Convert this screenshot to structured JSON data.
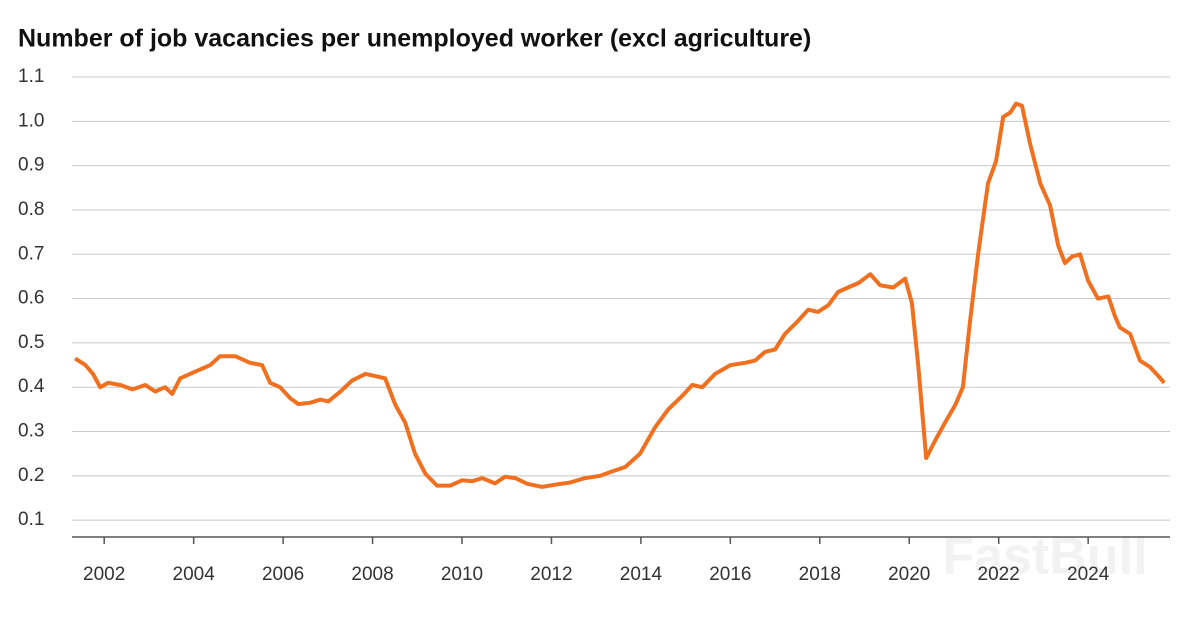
{
  "chart_data": {
    "type": "line",
    "title": "Number of job vacancies per unemployed worker (excl agriculture)",
    "watermark": "FastBull",
    "x": [
      2001.35,
      2001.58,
      2001.75,
      2001.91,
      2002.09,
      2002.36,
      2002.63,
      2002.92,
      2003.14,
      2003.36,
      2003.52,
      2003.7,
      2004.03,
      2004.37,
      2004.59,
      2004.93,
      2005.26,
      2005.53,
      2005.71,
      2005.93,
      2006.16,
      2006.34,
      2006.61,
      2006.83,
      2007.01,
      2007.28,
      2007.54,
      2007.84,
      2008.06,
      2008.28,
      2008.51,
      2008.73,
      2008.95,
      2009.18,
      2009.44,
      2009.74,
      2010.0,
      2010.23,
      2010.45,
      2010.74,
      2010.96,
      2011.19,
      2011.46,
      2011.79,
      2012.08,
      2012.42,
      2012.75,
      2013.09,
      2013.36,
      2013.65,
      2013.98,
      2014.32,
      2014.61,
      2014.92,
      2015.15,
      2015.37,
      2015.66,
      2016.0,
      2016.33,
      2016.55,
      2016.78,
      2017.0,
      2017.22,
      2017.52,
      2017.74,
      2017.96,
      2018.19,
      2018.41,
      2018.63,
      2018.86,
      2019.13,
      2019.35,
      2019.64,
      2019.91,
      2020.06,
      2020.2,
      2020.38,
      2020.58,
      2020.8,
      2021.03,
      2021.2,
      2021.36,
      2021.54,
      2021.76,
      2021.94,
      2022.1,
      2022.26,
      2022.39,
      2022.52,
      2022.7,
      2022.93,
      2023.15,
      2023.33,
      2023.48,
      2023.64,
      2023.82,
      2024.0,
      2024.22,
      2024.45,
      2024.6,
      2024.71,
      2024.94,
      2025.16,
      2025.39,
      2025.57,
      2025.7
    ],
    "series": [
      {
        "name": "Vacancies per unemployed worker",
        "color": "#f07020",
        "values": [
          0.465,
          0.45,
          0.43,
          0.4,
          0.41,
          0.405,
          0.395,
          0.405,
          0.39,
          0.4,
          0.385,
          0.42,
          0.435,
          0.45,
          0.47,
          0.47,
          0.455,
          0.45,
          0.41,
          0.4,
          0.375,
          0.362,
          0.365,
          0.372,
          0.368,
          0.39,
          0.415,
          0.43,
          0.425,
          0.42,
          0.36,
          0.32,
          0.25,
          0.205,
          0.178,
          0.178,
          0.19,
          0.188,
          0.195,
          0.183,
          0.198,
          0.195,
          0.182,
          0.175,
          0.18,
          0.185,
          0.195,
          0.2,
          0.21,
          0.22,
          0.25,
          0.31,
          0.35,
          0.38,
          0.405,
          0.4,
          0.43,
          0.45,
          0.455,
          0.46,
          0.48,
          0.485,
          0.52,
          0.55,
          0.575,
          0.57,
          0.585,
          0.615,
          0.625,
          0.635,
          0.655,
          0.63,
          0.625,
          0.645,
          0.59,
          0.45,
          0.24,
          0.28,
          0.32,
          0.36,
          0.4,
          0.55,
          0.7,
          0.86,
          0.91,
          1.01,
          1.02,
          1.04,
          1.035,
          0.95,
          0.86,
          0.81,
          0.72,
          0.68,
          0.695,
          0.7,
          0.64,
          0.6,
          0.605,
          0.56,
          0.535,
          0.52,
          0.46,
          0.445,
          0.425,
          0.41
        ]
      }
    ],
    "xlim": [
      2001.28,
      2025.83
    ],
    "xticks": [
      2002,
      2004,
      2006,
      2008,
      2010,
      2012,
      2014,
      2016,
      2018,
      2020,
      2022,
      2024
    ],
    "ylim": [
      0.062,
      1.1
    ],
    "yticks": [
      0.1,
      0.2,
      0.3,
      0.4,
      0.5,
      0.6,
      0.7,
      0.8,
      0.9,
      {
        "value": 1,
        "label": "1.0"
      },
      1.1
    ],
    "grid": true
  }
}
